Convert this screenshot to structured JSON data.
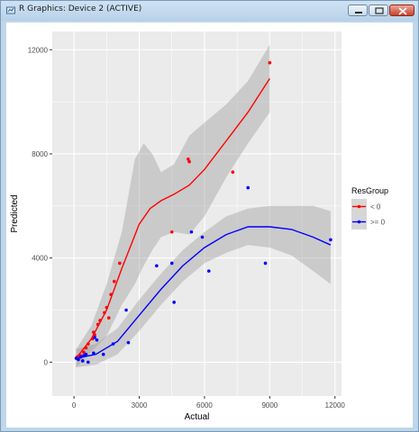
{
  "window": {
    "title": "R Graphics: Device 2 (ACTIVE)",
    "title_icon": "r-graphics-icon",
    "buttons": [
      "minimize-icon",
      "maximize-icon",
      "close-icon"
    ]
  },
  "chart_data": {
    "type": "scatter",
    "xlabel": "Actual",
    "ylabel": "Predicted",
    "xlim": [
      -1000,
      12300
    ],
    "ylim": [
      -1300,
      12700
    ],
    "x_ticks": [
      0,
      3000,
      6000,
      9000,
      12000
    ],
    "x_tick_labels": [
      "0",
      "3000",
      "6000",
      "9000",
      "12000"
    ],
    "y_ticks": [
      0,
      4000,
      8000,
      12000
    ],
    "y_tick_labels": [
      "0",
      "4000",
      "8000",
      "12000"
    ],
    "grid": true,
    "smoother": "loess with confidence band",
    "legend": {
      "title": "ResGroup",
      "placement": "right",
      "entries": [
        "< 0",
        ">= 0"
      ]
    },
    "colors": {
      "< 0": "#ff0000",
      ">= 0": "#0000ff",
      "panel": "#ebebeb",
      "grid": "#ffffff",
      "band": "#999999"
    },
    "series": [
      {
        "name": "< 0",
        "points": [
          [
            150,
            200
          ],
          [
            300,
            250
          ],
          [
            450,
            380
          ],
          [
            550,
            550
          ],
          [
            650,
            700
          ],
          [
            850,
            900
          ],
          [
            900,
            1150
          ],
          [
            950,
            1050
          ],
          [
            1100,
            1450
          ],
          [
            1200,
            1600
          ],
          [
            1400,
            1900
          ],
          [
            1500,
            2100
          ],
          [
            1600,
            1700
          ],
          [
            1700,
            2600
          ],
          [
            1850,
            3100
          ],
          [
            2100,
            3800
          ],
          [
            4500,
            5000
          ],
          [
            5250,
            7800
          ],
          [
            5300,
            7700
          ],
          [
            7300,
            7300
          ],
          [
            9000,
            11500
          ]
        ],
        "trend": [
          [
            100,
            150
          ],
          [
            800,
            900
          ],
          [
            1500,
            2000
          ],
          [
            2200,
            3600
          ],
          [
            3000,
            5300
          ],
          [
            3500,
            5900
          ],
          [
            4000,
            6200
          ],
          [
            4600,
            6450
          ],
          [
            5300,
            6800
          ],
          [
            6000,
            7400
          ],
          [
            7000,
            8500
          ],
          [
            8000,
            9600
          ],
          [
            9000,
            10900
          ]
        ],
        "band_upper": [
          [
            100,
            500
          ],
          [
            800,
            1400
          ],
          [
            1500,
            3000
          ],
          [
            2200,
            5000
          ],
          [
            2800,
            7800
          ],
          [
            3200,
            8400
          ],
          [
            3600,
            8000
          ],
          [
            4000,
            7300
          ],
          [
            4600,
            7600
          ],
          [
            5300,
            8700
          ],
          [
            6000,
            9200
          ],
          [
            7000,
            9900
          ],
          [
            8000,
            10800
          ],
          [
            9000,
            12200
          ]
        ],
        "band_lower": [
          [
            9000,
            9600
          ],
          [
            8000,
            8400
          ],
          [
            7000,
            7100
          ],
          [
            6000,
            5600
          ],
          [
            5300,
            4900
          ],
          [
            4600,
            5000
          ],
          [
            4000,
            4800
          ],
          [
            3600,
            4300
          ],
          [
            3200,
            3700
          ],
          [
            2800,
            3000
          ],
          [
            2200,
            2200
          ],
          [
            1500,
            1000
          ],
          [
            800,
            400
          ],
          [
            100,
            -200
          ]
        ]
      },
      {
        "name": ">= 0",
        "points": [
          [
            100,
            150
          ],
          [
            200,
            100
          ],
          [
            300,
            200
          ],
          [
            400,
            50
          ],
          [
            450,
            250
          ],
          [
            550,
            300
          ],
          [
            650,
            0
          ],
          [
            900,
            350
          ],
          [
            950,
            950
          ],
          [
            1050,
            850
          ],
          [
            1350,
            300
          ],
          [
            1800,
            700
          ],
          [
            2400,
            2000
          ],
          [
            2500,
            750
          ],
          [
            3800,
            3700
          ],
          [
            4500,
            3800
          ],
          [
            4600,
            2300
          ],
          [
            5400,
            5000
          ],
          [
            5900,
            4800
          ],
          [
            6200,
            3500
          ],
          [
            8000,
            6700
          ],
          [
            8800,
            3800
          ],
          [
            11800,
            4700
          ]
        ],
        "trend": [
          [
            100,
            150
          ],
          [
            1000,
            300
          ],
          [
            2000,
            800
          ],
          [
            3000,
            1800
          ],
          [
            4000,
            2800
          ],
          [
            5000,
            3700
          ],
          [
            6000,
            4400
          ],
          [
            7000,
            4900
          ],
          [
            8000,
            5200
          ],
          [
            9000,
            5200
          ],
          [
            10000,
            5100
          ],
          [
            11000,
            4800
          ],
          [
            11800,
            4500
          ]
        ],
        "band_upper": [
          [
            100,
            500
          ],
          [
            1000,
            700
          ],
          [
            2000,
            1300
          ],
          [
            3000,
            2400
          ],
          [
            4000,
            3400
          ],
          [
            5000,
            4300
          ],
          [
            6000,
            5000
          ],
          [
            7000,
            5600
          ],
          [
            8000,
            5900
          ],
          [
            9000,
            6000
          ],
          [
            10000,
            6000
          ],
          [
            11000,
            6000
          ],
          [
            11800,
            5800
          ]
        ],
        "band_lower": [
          [
            11800,
            3000
          ],
          [
            11000,
            3500
          ],
          [
            10000,
            4100
          ],
          [
            9000,
            4400
          ],
          [
            8000,
            4500
          ],
          [
            7000,
            4200
          ],
          [
            6000,
            3800
          ],
          [
            5000,
            3100
          ],
          [
            4000,
            2200
          ],
          [
            3000,
            1200
          ],
          [
            2000,
            300
          ],
          [
            1000,
            -100
          ],
          [
            100,
            -200
          ]
        ]
      }
    ]
  }
}
